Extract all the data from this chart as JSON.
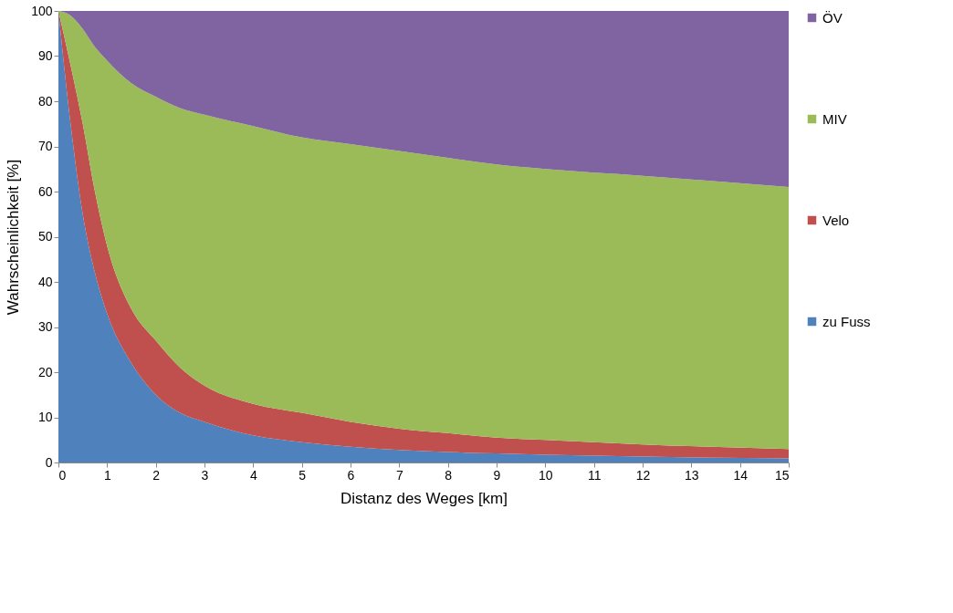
{
  "chart_data": {
    "type": "area",
    "stacked": true,
    "xlabel": "Distanz des Weges [km]",
    "ylabel": "Wahrscheinlichkeit [%]",
    "x": [
      0,
      0.25,
      0.5,
      0.75,
      1,
      1.5,
      2,
      2.5,
      3,
      4,
      5,
      6,
      7,
      8,
      9,
      10,
      12,
      15
    ],
    "series": [
      {
        "name": "zu Fuss",
        "color": "#4f81bd",
        "values": [
          100,
          75,
          55,
          42,
          33,
          22,
          15,
          11,
          9,
          6,
          4.5,
          3.5,
          2.8,
          2.3,
          2,
          1.7,
          1.3,
          0.9
        ]
      },
      {
        "name": "Velo",
        "color": "#c0504d",
        "values": [
          0,
          13,
          20,
          18,
          15,
          12,
          12,
          10,
          8,
          7,
          6.5,
          5.5,
          4.7,
          4.2,
          3.5,
          3.3,
          2.7,
          2.1
        ]
      },
      {
        "name": "MIV",
        "color": "#9bbb59",
        "values": [
          0,
          11,
          21,
          32,
          41,
          50,
          54,
          57.5,
          60,
          61.5,
          61,
          61.5,
          61.5,
          61,
          60.5,
          60,
          59.5,
          58
        ]
      },
      {
        "name": "ÖV",
        "color": "#8064a2",
        "values": [
          0,
          1,
          4,
          8,
          11,
          16,
          19,
          21.5,
          23,
          25.5,
          28,
          29.5,
          31,
          32.5,
          34,
          35,
          36.5,
          39
        ]
      }
    ],
    "xlim": [
      0,
      15
    ],
    "xticks": [
      0,
      1,
      2,
      3,
      4,
      5,
      6,
      7,
      8,
      9,
      10,
      11,
      12,
      13,
      14,
      15
    ],
    "ylim": [
      0,
      100
    ],
    "yticks": [
      0,
      10,
      20,
      30,
      40,
      50,
      60,
      70,
      80,
      90,
      100
    ],
    "grid": false,
    "legend": "right"
  }
}
